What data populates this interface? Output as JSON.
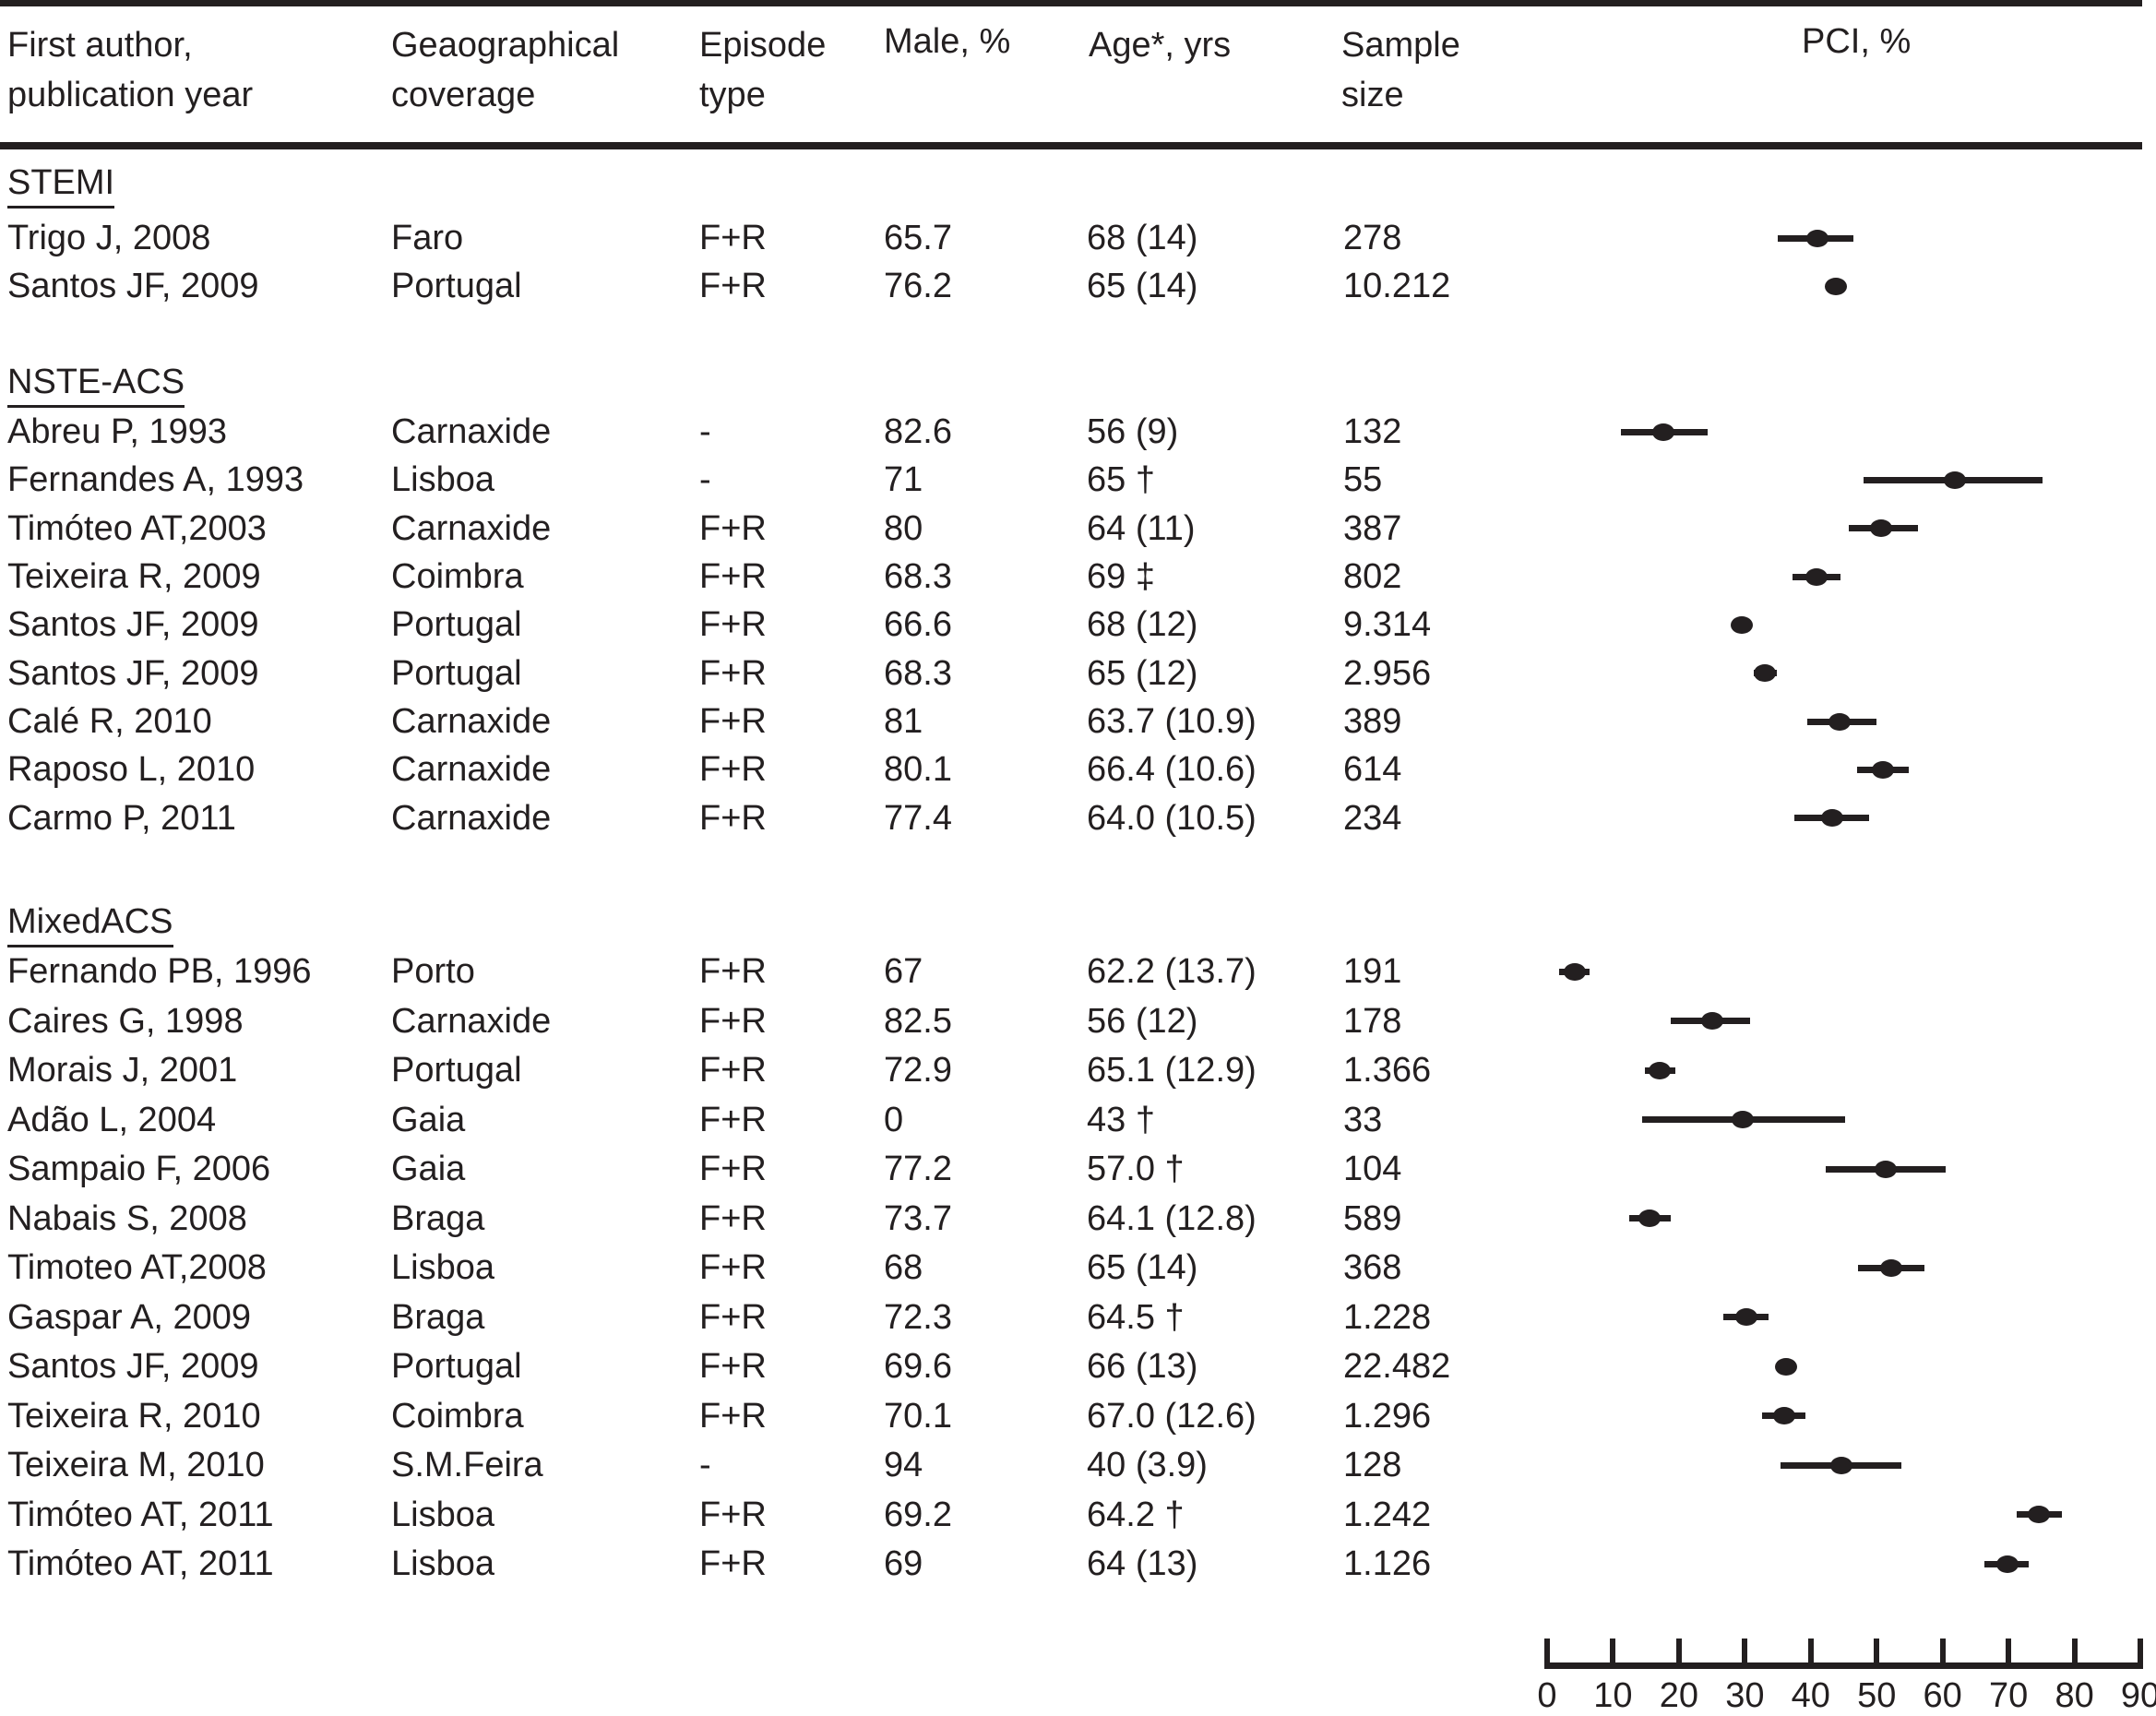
{
  "header": {
    "col_author_line1": "First author,",
    "col_author_line2": "publication year",
    "col_geo_line1": "Geaographical",
    "col_geo_line2": "coverage",
    "col_episode_line1": "Episode",
    "col_episode_line2": "type",
    "col_male": "Male, %",
    "col_age": "Age*, yrs",
    "col_sample_line1": "Sample",
    "col_sample_line2": "size",
    "col_pci": "PCI, %"
  },
  "axis": {
    "min": 0,
    "max": 90,
    "step": 10,
    "ticks": [
      "0",
      "10",
      "20",
      "30",
      "40",
      "50",
      "60",
      "70",
      "80",
      "90"
    ]
  },
  "colors": {
    "ink": "#231f20",
    "background": "#ffffff"
  },
  "chart_data": {
    "type": "scatter",
    "title": "PCI, %",
    "xlabel": "PCI, %",
    "xlim": [
      0,
      90
    ],
    "grid": false,
    "sections": [
      {
        "label": "STEMI",
        "studies": [
          {
            "author": "Trigo J, 2008",
            "coverage": "Faro",
            "episode": "F+R",
            "male": "65.7",
            "age": "68 (14)",
            "sample": "278",
            "pci": 41.0,
            "ci": [
              35.0,
              46.5
            ]
          },
          {
            "author": "Santos JF, 2009",
            "coverage": "Portugal",
            "episode": "F+R",
            "male": "76.2",
            "age": "65 (14)",
            "sample": "10.212",
            "pci": 43.8,
            "ci": [
              42.8,
              44.8
            ]
          }
        ]
      },
      {
        "label": "NSTE-ACS",
        "studies": [
          {
            "author": "Abreu P, 1993",
            "coverage": "Carnaxide",
            "episode": "-",
            "male": "82.6",
            "age": "56 (9)",
            "sample": "132",
            "pci": 17.6,
            "ci": [
              11.2,
              24.4
            ]
          },
          {
            "author": "Fernandes A, 1993",
            "coverage": "Lisboa",
            "episode": "-",
            "male": "71",
            "age": "65 †",
            "sample": "55",
            "pci": 61.8,
            "ci": [
              48.0,
              75.2
            ]
          },
          {
            "author": "Timóteo AT,2003",
            "coverage": "Carnaxide",
            "episode": "F+R",
            "male": "80",
            "age": "64 (11)",
            "sample": "387",
            "pci": 50.7,
            "ci": [
              45.7,
              56.2
            ]
          },
          {
            "author": "Teixeira R, 2009",
            "coverage": "Coimbra",
            "episode": "F+R",
            "male": "68.3",
            "age": "69 ‡",
            "sample": "802",
            "pci": 40.8,
            "ci": [
              37.2,
              44.5
            ]
          },
          {
            "author": "Santos JF, 2009",
            "coverage": "Portugal",
            "episode": "F+R",
            "male": "66.6",
            "age": "68 (12)",
            "sample": "9.314",
            "pci": 29.5,
            "ci": [
              28.5,
              30.5
            ]
          },
          {
            "author": "Santos JF, 2009",
            "coverage": "Portugal",
            "episode": "F+R",
            "male": "68.3",
            "age": "65 (12)",
            "sample": "2.956",
            "pci": 33.1,
            "ci": [
              31.4,
              34.8
            ]
          },
          {
            "author": "Calé R, 2010",
            "coverage": "Carnaxide",
            "episode": "F+R",
            "male": "81",
            "age": "63.7 (10.9)",
            "sample": "389",
            "pci": 44.4,
            "ci": [
              39.4,
              50.0
            ]
          },
          {
            "author": "Raposo L, 2010",
            "coverage": "Carnaxide",
            "episode": "F+R",
            "male": "80.1",
            "age": "66.4 (10.6)",
            "sample": "614",
            "pci": 50.9,
            "ci": [
              47.0,
              54.8
            ]
          },
          {
            "author": "Carmo P, 2011",
            "coverage": "Carnaxide",
            "episode": "F+R",
            "male": "77.4",
            "age": "64.0 (10.5)",
            "sample": "234",
            "pci": 43.3,
            "ci": [
              37.5,
              48.9
            ]
          }
        ]
      },
      {
        "label": "MixedACS",
        "studies": [
          {
            "author": "Fernando PB, 1996",
            "coverage": "Porto",
            "episode": "F+R",
            "male": "67",
            "age": "62.2 (13.7)",
            "sample": "191",
            "pci": 4.2,
            "ci": [
              1.8,
              6.4
            ]
          },
          {
            "author": "Caires G, 1998",
            "coverage": "Carnaxide",
            "episode": "F+R",
            "male": "82.5",
            "age": "56 (12)",
            "sample": "178",
            "pci": 25.0,
            "ci": [
              18.8,
              30.8
            ]
          },
          {
            "author": "Morais J, 2001",
            "coverage": "Portugal",
            "episode": "F+R",
            "male": "72.9",
            "age": "65.1 (12.9)",
            "sample": "1.366",
            "pci": 17.1,
            "ci": [
              14.8,
              19.4
            ]
          },
          {
            "author": "Adão L, 2004",
            "coverage": "Gaia",
            "episode": "F+R",
            "male": "0",
            "age": "43 †",
            "sample": "33",
            "pci": 29.7,
            "ci": [
              14.4,
              45.2
            ]
          },
          {
            "author": "Sampaio F, 2006",
            "coverage": "Gaia",
            "episode": "F+R",
            "male": "77.2",
            "age": "57.0 †",
            "sample": "104",
            "pci": 51.3,
            "ci": [
              42.2,
              60.4
            ]
          },
          {
            "author": "Nabais S, 2008",
            "coverage": "Braga",
            "episode": "F+R",
            "male": "73.7",
            "age": "64.1 (12.8)",
            "sample": "589",
            "pci": 15.5,
            "ci": [
              12.4,
              18.8
            ]
          },
          {
            "author": "Timoteo AT,2008",
            "coverage": "Lisboa",
            "episode": "F+R",
            "male": "68",
            "age": "65 (14)",
            "sample": "368",
            "pci": 52.2,
            "ci": [
              47.1,
              57.3
            ]
          },
          {
            "author": "Gaspar A, 2009",
            "coverage": "Braga",
            "episode": "F+R",
            "male": "72.3",
            "age": "64.5 †",
            "sample": "1.228",
            "pci": 30.3,
            "ci": [
              26.8,
              33.6
            ]
          },
          {
            "author": "Santos JF, 2009",
            "coverage": "Portugal",
            "episode": "F+R",
            "male": "69.6",
            "age": "66 (13)",
            "sample": "22.482",
            "pci": 36.3,
            "ci": [
              35.3,
              37.3
            ]
          },
          {
            "author": "Teixeira R, 2010",
            "coverage": "Coimbra",
            "episode": "F+R",
            "male": "70.1",
            "age": "67.0 (12.6)",
            "sample": "1.296",
            "pci": 36.0,
            "ci": [
              32.6,
              39.2
            ]
          },
          {
            "author": "Teixeira M, 2010",
            "coverage": "S.M.Feira",
            "episode": "-",
            "male": "94",
            "age": "40 (3.9)",
            "sample": "128",
            "pci": 44.7,
            "ci": [
              35.4,
              53.7
            ]
          },
          {
            "author": "Timóteo AT, 2011",
            "coverage": "Lisboa",
            "episode": "F+R",
            "male": "69.2",
            "age": "64.2 †",
            "sample": "1.242",
            "pci": 74.6,
            "ci": [
              71.3,
              78.1
            ]
          },
          {
            "author": "Timóteo AT, 2011",
            "coverage": "Lisboa",
            "episode": "F+R",
            "male": "69",
            "age": "64 (13)",
            "sample": "1.126",
            "pci": 69.8,
            "ci": [
              66.4,
              73.0
            ]
          }
        ]
      }
    ]
  }
}
